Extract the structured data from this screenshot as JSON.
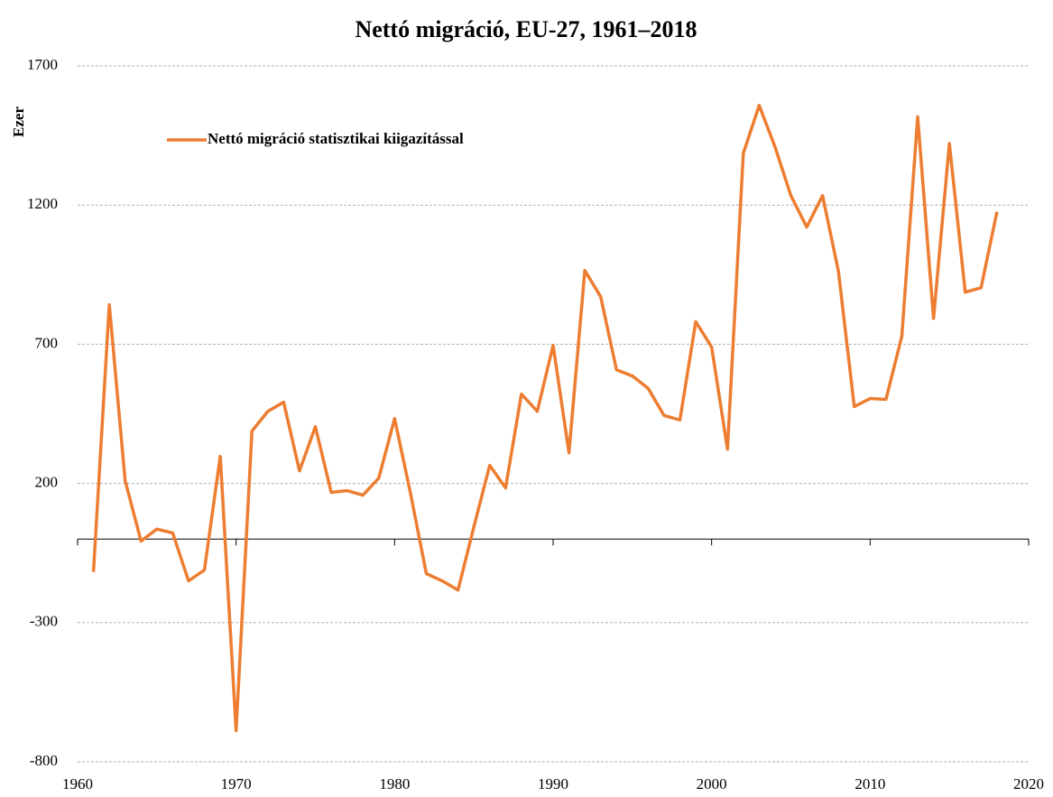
{
  "chart_data": {
    "type": "line",
    "title": "Nettó migráció, EU-27, 1961–2018",
    "y_label": "Ezer",
    "x": [
      1961,
      1962,
      1963,
      1964,
      1965,
      1966,
      1967,
      1968,
      1969,
      1970,
      1971,
      1972,
      1973,
      1974,
      1975,
      1976,
      1977,
      1978,
      1979,
      1980,
      1981,
      1982,
      1983,
      1984,
      1985,
      1986,
      1987,
      1988,
      1989,
      1990,
      1991,
      1992,
      1993,
      1994,
      1995,
      1996,
      1997,
      1998,
      1999,
      2000,
      2001,
      2002,
      2003,
      2004,
      2005,
      2006,
      2007,
      2008,
      2009,
      2010,
      2011,
      2012,
      2013,
      2014,
      2015,
      2016,
      2017,
      2018
    ],
    "series": [
      {
        "name": "Nettó migráció statisztikai kiigazítással",
        "color": "#ed7d31",
        "values": [
          -118,
          842,
          210,
          -7,
          36,
          22,
          -150,
          -111,
          297,
          -688,
          388,
          459,
          492,
          245,
          404,
          168,
          174,
          158,
          219,
          433,
          165,
          -124,
          -150,
          -183,
          44,
          265,
          184,
          521,
          459,
          696,
          310,
          965,
          871,
          608,
          586,
          541,
          444,
          428,
          781,
          690,
          323,
          1386,
          1558,
          1409,
          1234,
          1121,
          1234,
          962,
          476,
          505,
          502,
          729,
          1517,
          793,
          1421,
          887,
          903,
          1176
        ]
      }
    ],
    "xlim": [
      1960,
      2020
    ],
    "xticks": [
      1960,
      1970,
      1980,
      1990,
      2000,
      2010,
      2020
    ],
    "ylim": [
      -800,
      1700
    ],
    "yticks": [
      -800,
      -300,
      200,
      700,
      1200,
      1700
    ],
    "grid": true,
    "legend": "upper left"
  }
}
